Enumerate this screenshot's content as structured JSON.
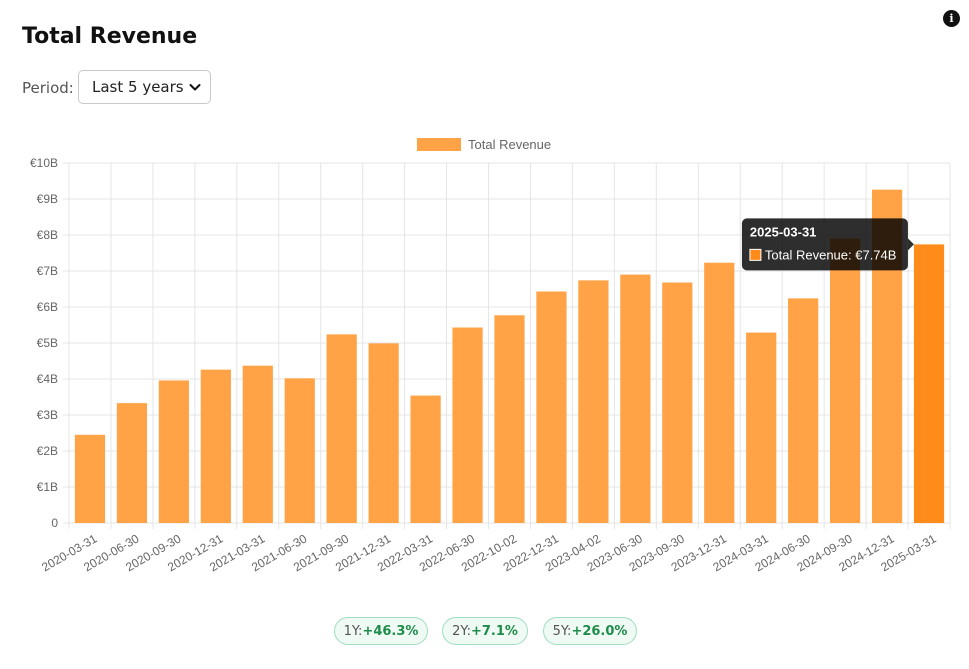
{
  "header": {
    "title": "Total Revenue",
    "info_icon": "info-icon"
  },
  "filter": {
    "label": "Period:",
    "selected": "Last 5 years"
  },
  "colors": {
    "bar": "#ffa346",
    "bar_active": "#ff8c1a",
    "grid": "#e5e5e5",
    "tooltip_bg": "rgba(0,0,0,0.82)",
    "positive": "#1e8c4a",
    "pill_border": "#9fdfbf"
  },
  "chart_data": {
    "type": "bar",
    "legend": "Total Revenue",
    "legend_position": "top",
    "grid": true,
    "ylim": [
      0,
      10
    ],
    "y_ticks": [
      {
        "v": 0,
        "label": "0"
      },
      {
        "v": 1,
        "label": "€1B"
      },
      {
        "v": 2,
        "label": "€2B"
      },
      {
        "v": 3,
        "label": "€3B"
      },
      {
        "v": 4,
        "label": "€4B"
      },
      {
        "v": 5,
        "label": "€5B"
      },
      {
        "v": 6,
        "label": "€6B"
      },
      {
        "v": 7,
        "label": "€7B"
      },
      {
        "v": 8,
        "label": "€8B"
      },
      {
        "v": 9,
        "label": "€9B"
      },
      {
        "v": 10,
        "label": "€10B"
      }
    ],
    "categories": [
      "2020-03-31",
      "2020-06-30",
      "2020-09-30",
      "2020-12-31",
      "2021-03-31",
      "2021-06-30",
      "2021-09-30",
      "2021-12-31",
      "2022-03-31",
      "2022-06-30",
      "2022-10-02",
      "2022-12-31",
      "2023-04-02",
      "2023-06-30",
      "2023-09-30",
      "2023-12-31",
      "2024-03-31",
      "2024-06-30",
      "2024-09-30",
      "2024-12-31",
      "2025-03-31"
    ],
    "series": [
      {
        "name": "Total Revenue",
        "values": [
          2.45,
          3.33,
          3.96,
          4.26,
          4.37,
          4.02,
          5.24,
          4.99,
          3.54,
          5.43,
          5.77,
          6.43,
          6.74,
          6.9,
          6.68,
          7.23,
          5.29,
          6.24,
          7.9,
          9.26,
          7.74
        ]
      }
    ],
    "tooltip": {
      "active_index": 20,
      "title": "2025-03-31",
      "label": "Total Revenue: €7.74B"
    }
  },
  "growth": [
    {
      "period": "1Y:",
      "value": "+46.3%"
    },
    {
      "period": "2Y:",
      "value": "+7.1%"
    },
    {
      "period": "5Y:",
      "value": "+26.0%"
    }
  ]
}
